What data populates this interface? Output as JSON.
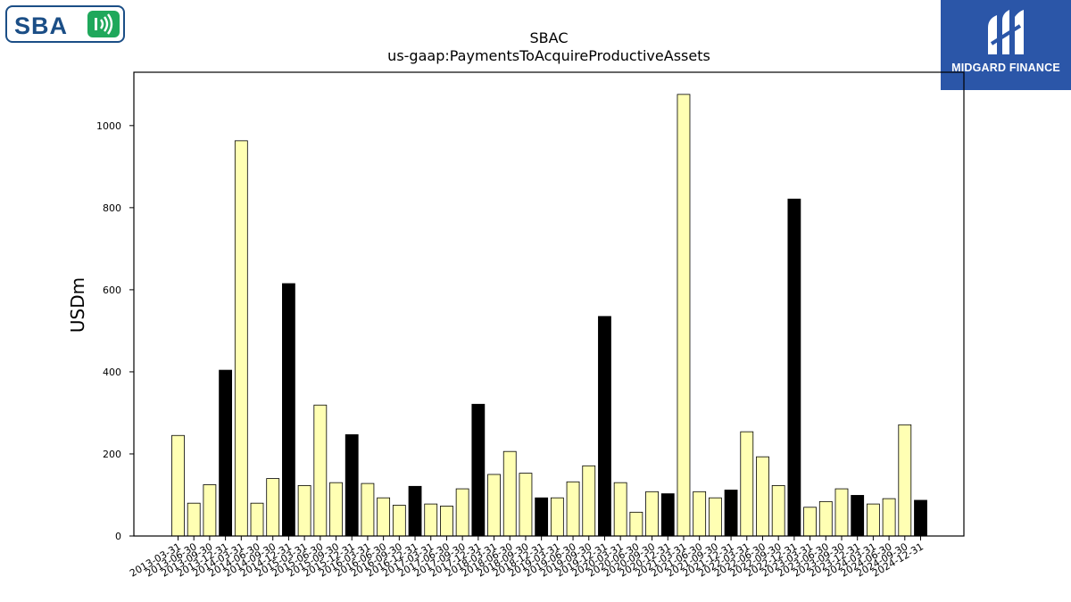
{
  "logos": {
    "left_text": "SBA",
    "right_text": "MIDGARD FINANCE"
  },
  "chart_data": {
    "type": "bar",
    "title": "SBAC",
    "subtitle": "us-gaap:PaymentsToAcquireProductiveAssets",
    "xlabel": "",
    "ylabel": "USDm",
    "ylim": [
      0,
      1130
    ],
    "yticks": [
      0,
      200,
      400,
      600,
      800,
      1000
    ],
    "colors": {
      "quarter": "#ffffb3",
      "year_end": "#000000",
      "edge": "#000000"
    },
    "categories": [
      "2013-03-31",
      "2013-06-30",
      "2013-09-30",
      "2013-12-31",
      "2014-03-31",
      "2014-06-30",
      "2014-09-30",
      "2014-12-31",
      "2015-03-31",
      "2015-06-30",
      "2015-09-30",
      "2015-12-31",
      "2016-03-31",
      "2016-06-30",
      "2016-09-30",
      "2016-12-31",
      "2017-03-31",
      "2017-06-30",
      "2017-09-30",
      "2017-12-31",
      "2018-03-31",
      "2018-06-30",
      "2018-09-30",
      "2018-12-31",
      "2019-03-31",
      "2019-06-30",
      "2019-09-30",
      "2019-12-31",
      "2020-03-31",
      "2020-06-30",
      "2020-09-30",
      "2020-12-31",
      "2021-03-31",
      "2021-06-30",
      "2021-09-30",
      "2021-12-31",
      "2022-03-31",
      "2022-06-30",
      "2022-09-30",
      "2022-12-31",
      "2023-03-31",
      "2023-06-30",
      "2023-09-30",
      "2023-12-31",
      "2024-03-31",
      "2024-06-30",
      "2024-09-30",
      "2024-12-31"
    ],
    "values": [
      245,
      80,
      125,
      404,
      963,
      80,
      140,
      615,
      123,
      319,
      130,
      247,
      128,
      93,
      75,
      121,
      78,
      73,
      115,
      321,
      150,
      206,
      153,
      93,
      93,
      132,
      171,
      535,
      130,
      58,
      108,
      103,
      1076,
      108,
      93,
      112,
      254,
      193,
      123,
      821,
      70,
      84,
      115,
      99,
      78,
      91,
      271,
      87
    ]
  }
}
